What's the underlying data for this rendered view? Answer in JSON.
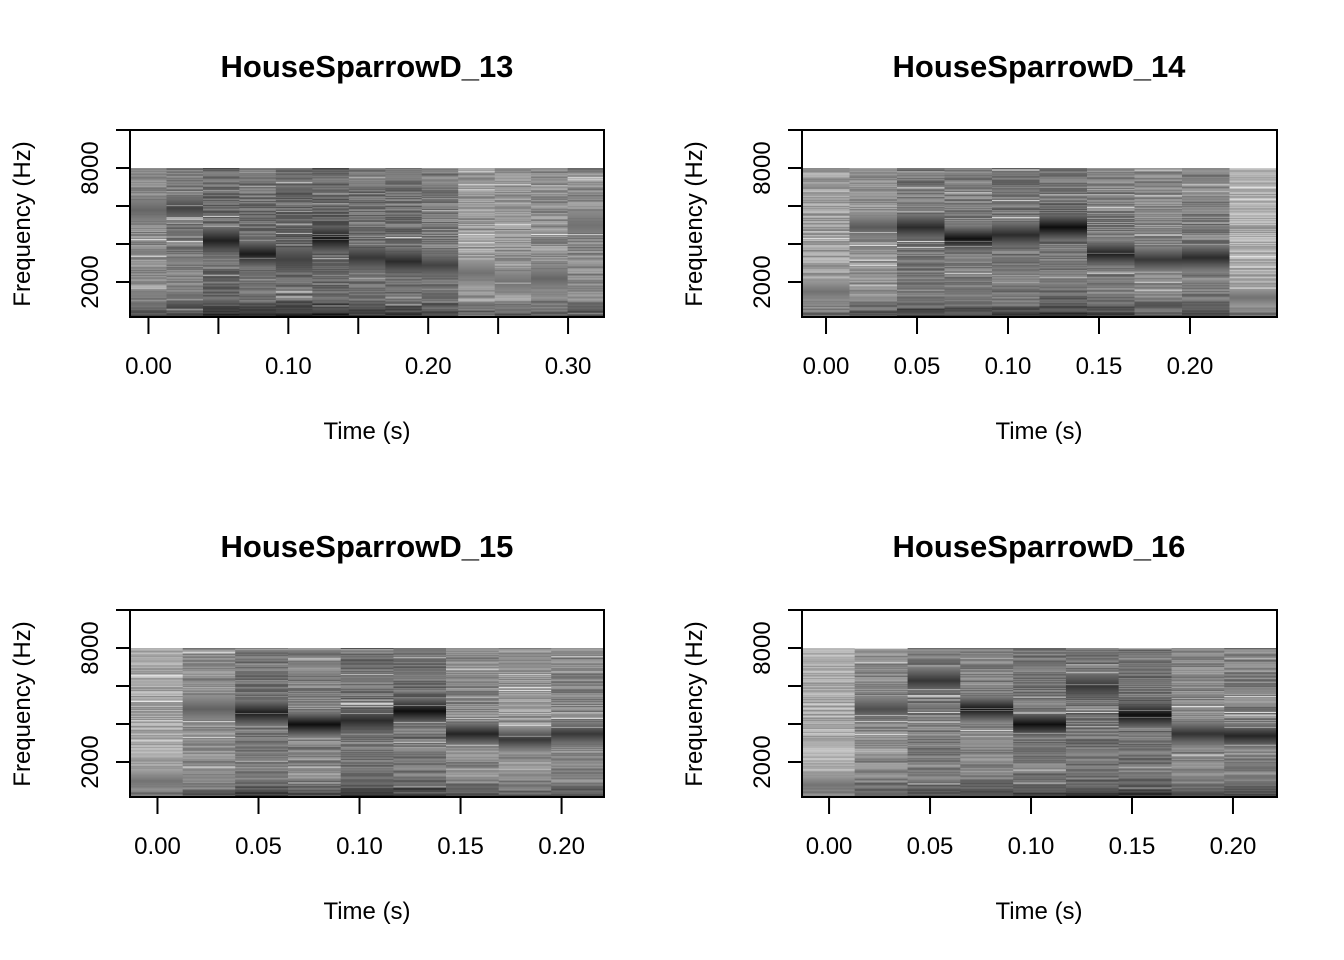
{
  "chart_data": [
    {
      "type": "heatmap",
      "subtype": "spectrogram",
      "title": "HouseSparrowD_13",
      "xlabel": "Time (s)",
      "ylabel": "Frequency (Hz)",
      "xlim": [
        -0.0132,
        0.3257
      ],
      "ylim": [
        158,
        10000
      ],
      "x_ticks": [
        0.0,
        0.05,
        0.1,
        0.15,
        0.2,
        0.25,
        0.3
      ],
      "x_tick_labels": [
        "0.00",
        "",
        "0.10",
        "",
        "0.20",
        "",
        "0.30"
      ],
      "y_ticks": [
        2000,
        4000,
        6000,
        8000,
        10000
      ],
      "y_tick_labels": [
        "2000",
        "",
        "",
        "8000",
        ""
      ],
      "freq_range_hz": [
        158,
        8000
      ],
      "colormap": "grayscale (dark = high energy)",
      "frames": [
        {
          "t0": -0.0132,
          "t1": 0.0129,
          "base_darkness": 0.45,
          "peak_hz": 5800,
          "peak_darkness": 0.6
        },
        {
          "t0": 0.0129,
          "t1": 0.039,
          "base_darkness": 0.5,
          "peak_hz": 5900,
          "peak_darkness": 0.75
        },
        {
          "t0": 0.039,
          "t1": 0.065,
          "base_darkness": 0.58,
          "peak_hz": 4200,
          "peak_darkness": 0.9
        },
        {
          "t0": 0.065,
          "t1": 0.0911,
          "base_darkness": 0.55,
          "peak_hz": 3500,
          "peak_darkness": 0.92
        },
        {
          "t0": 0.0911,
          "t1": 0.1172,
          "base_darkness": 0.58,
          "peak_hz": 3200,
          "peak_darkness": 0.75
        },
        {
          "t0": 0.1172,
          "t1": 0.1433,
          "base_darkness": 0.6,
          "peak_hz": 4300,
          "peak_darkness": 0.95
        },
        {
          "t0": 0.1433,
          "t1": 0.1694,
          "base_darkness": 0.55,
          "peak_hz": 3300,
          "peak_darkness": 0.8
        },
        {
          "t0": 0.1694,
          "t1": 0.1954,
          "base_darkness": 0.55,
          "peak_hz": 3100,
          "peak_darkness": 0.85
        },
        {
          "t0": 0.1954,
          "t1": 0.2215,
          "base_darkness": 0.5,
          "peak_hz": 2900,
          "peak_darkness": 0.75
        },
        {
          "t0": 0.2215,
          "t1": 0.2476,
          "base_darkness": 0.38,
          "peak_hz": 2500,
          "peak_darkness": 0.55
        },
        {
          "t0": 0.2476,
          "t1": 0.2736,
          "base_darkness": 0.4,
          "peak_hz": 2000,
          "peak_darkness": 0.55
        },
        {
          "t0": 0.2736,
          "t1": 0.2997,
          "base_darkness": 0.42,
          "peak_hz": 2200,
          "peak_darkness": 0.6
        },
        {
          "t0": 0.2997,
          "t1": 0.3257,
          "base_darkness": 0.45,
          "peak_hz": 5000,
          "peak_darkness": 0.55
        }
      ]
    },
    {
      "type": "heatmap",
      "subtype": "spectrogram",
      "title": "HouseSparrowD_14",
      "xlabel": "Time (s)",
      "ylabel": "Frequency (Hz)",
      "xlim": [
        -0.0132,
        0.2478
      ],
      "ylim": [
        158,
        10000
      ],
      "x_ticks": [
        0.0,
        0.05,
        0.1,
        0.15,
        0.2
      ],
      "x_tick_labels": [
        "0.00",
        "0.05",
        "0.10",
        "0.15",
        "0.20"
      ],
      "y_ticks": [
        2000,
        4000,
        6000,
        8000,
        10000
      ],
      "y_tick_labels": [
        "2000",
        "",
        "",
        "8000",
        ""
      ],
      "freq_range_hz": [
        158,
        8000
      ],
      "colormap": "grayscale (dark = high energy)",
      "frames": [
        {
          "t0": -0.0132,
          "t1": 0.0129,
          "base_darkness": 0.35,
          "peak_hz": 1500,
          "peak_darkness": 0.55
        },
        {
          "t0": 0.0129,
          "t1": 0.039,
          "base_darkness": 0.42,
          "peak_hz": 4900,
          "peak_darkness": 0.65
        },
        {
          "t0": 0.039,
          "t1": 0.0651,
          "base_darkness": 0.52,
          "peak_hz": 4900,
          "peak_darkness": 0.85
        },
        {
          "t0": 0.0651,
          "t1": 0.0912,
          "base_darkness": 0.5,
          "peak_hz": 4300,
          "peak_darkness": 0.97
        },
        {
          "t0": 0.0912,
          "t1": 0.1173,
          "base_darkness": 0.52,
          "peak_hz": 4500,
          "peak_darkness": 0.85
        },
        {
          "t0": 0.1173,
          "t1": 0.1434,
          "base_darkness": 0.55,
          "peak_hz": 4900,
          "peak_darkness": 0.98
        },
        {
          "t0": 0.1434,
          "t1": 0.1695,
          "base_darkness": 0.5,
          "peak_hz": 3500,
          "peak_darkness": 0.9
        },
        {
          "t0": 0.1695,
          "t1": 0.1956,
          "base_darkness": 0.46,
          "peak_hz": 3200,
          "peak_darkness": 0.8
        },
        {
          "t0": 0.1956,
          "t1": 0.2217,
          "base_darkness": 0.5,
          "peak_hz": 3300,
          "peak_darkness": 0.85
        },
        {
          "t0": 0.2217,
          "t1": 0.2478,
          "base_darkness": 0.3,
          "peak_hz": 1200,
          "peak_darkness": 0.55
        }
      ]
    },
    {
      "type": "heatmap",
      "subtype": "spectrogram",
      "title": "HouseSparrowD_15",
      "xlabel": "Time (s)",
      "ylabel": "Frequency (Hz)",
      "xlim": [
        -0.0136,
        0.221
      ],
      "ylim": [
        158,
        10000
      ],
      "x_ticks": [
        0.0,
        0.05,
        0.1,
        0.15,
        0.2
      ],
      "x_tick_labels": [
        "0.00",
        "0.05",
        "0.10",
        "0.15",
        "0.20"
      ],
      "y_ticks": [
        2000,
        4000,
        6000,
        8000,
        10000
      ],
      "y_tick_labels": [
        "2000",
        "",
        "",
        "8000",
        ""
      ],
      "freq_range_hz": [
        158,
        8000
      ],
      "colormap": "grayscale (dark = high energy)",
      "frames": [
        {
          "t0": -0.0136,
          "t1": 0.0125,
          "base_darkness": 0.32,
          "peak_hz": 1000,
          "peak_darkness": 0.55
        },
        {
          "t0": 0.0125,
          "t1": 0.0385,
          "base_darkness": 0.42,
          "peak_hz": 4800,
          "peak_darkness": 0.62
        },
        {
          "t0": 0.0385,
          "t1": 0.0646,
          "base_darkness": 0.52,
          "peak_hz": 4600,
          "peak_darkness": 0.92
        },
        {
          "t0": 0.0646,
          "t1": 0.0907,
          "base_darkness": 0.48,
          "peak_hz": 4000,
          "peak_darkness": 0.98
        },
        {
          "t0": 0.0907,
          "t1": 0.1168,
          "base_darkness": 0.55,
          "peak_hz": 4200,
          "peak_darkness": 0.85
        },
        {
          "t0": 0.1168,
          "t1": 0.1428,
          "base_darkness": 0.55,
          "peak_hz": 4700,
          "peak_darkness": 0.98
        },
        {
          "t0": 0.1428,
          "t1": 0.1689,
          "base_darkness": 0.45,
          "peak_hz": 3500,
          "peak_darkness": 0.88
        },
        {
          "t0": 0.1689,
          "t1": 0.1949,
          "base_darkness": 0.4,
          "peak_hz": 3200,
          "peak_darkness": 0.8
        },
        {
          "t0": 0.1949,
          "t1": 0.221,
          "base_darkness": 0.45,
          "peak_hz": 3500,
          "peak_darkness": 0.8
        }
      ]
    },
    {
      "type": "heatmap",
      "subtype": "spectrogram",
      "title": "HouseSparrowD_16",
      "xlabel": "Time (s)",
      "ylabel": "Frequency (Hz)",
      "xlim": [
        -0.0134,
        0.2218
      ],
      "ylim": [
        158,
        10000
      ],
      "x_ticks": [
        0.0,
        0.05,
        0.1,
        0.15,
        0.2
      ],
      "x_tick_labels": [
        "0.00",
        "0.05",
        "0.10",
        "0.15",
        "0.20"
      ],
      "y_ticks": [
        2000,
        4000,
        6000,
        8000,
        10000
      ],
      "y_tick_labels": [
        "2000",
        "",
        "",
        "8000",
        ""
      ],
      "freq_range_hz": [
        158,
        8000
      ],
      "colormap": "grayscale (dark = high energy)",
      "frames": [
        {
          "t0": -0.0134,
          "t1": 0.0127,
          "base_darkness": 0.3,
          "peak_hz": 800,
          "peak_darkness": 0.55
        },
        {
          "t0": 0.0127,
          "t1": 0.0389,
          "base_darkness": 0.45,
          "peak_hz": 4800,
          "peak_darkness": 0.7
        },
        {
          "t0": 0.0389,
          "t1": 0.065,
          "base_darkness": 0.5,
          "peak_hz": 6300,
          "peak_darkness": 0.8
        },
        {
          "t0": 0.065,
          "t1": 0.0912,
          "base_darkness": 0.48,
          "peak_hz": 4800,
          "peak_darkness": 0.95
        },
        {
          "t0": 0.0912,
          "t1": 0.1173,
          "base_darkness": 0.52,
          "peak_hz": 4000,
          "peak_darkness": 0.97
        },
        {
          "t0": 0.1173,
          "t1": 0.1434,
          "base_darkness": 0.55,
          "peak_hz": 6000,
          "peak_darkness": 0.8
        },
        {
          "t0": 0.1434,
          "t1": 0.1696,
          "base_darkness": 0.55,
          "peak_hz": 4500,
          "peak_darkness": 0.98
        },
        {
          "t0": 0.1696,
          "t1": 0.1957,
          "base_darkness": 0.45,
          "peak_hz": 3500,
          "peak_darkness": 0.82
        },
        {
          "t0": 0.1957,
          "t1": 0.2218,
          "base_darkness": 0.48,
          "peak_hz": 3400,
          "peak_darkness": 0.88
        }
      ]
    }
  ]
}
